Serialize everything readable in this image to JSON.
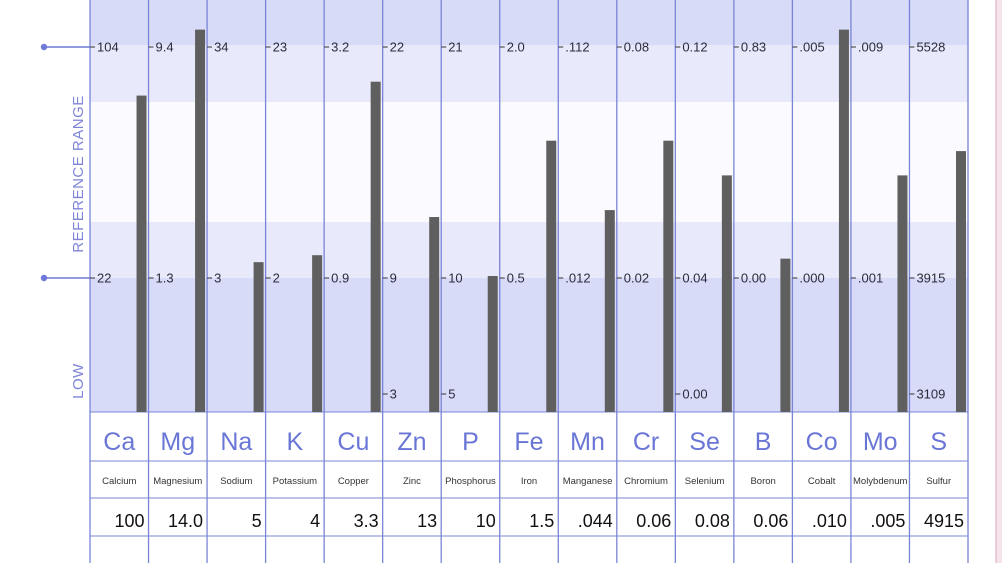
{
  "side_labels": {
    "reference_range": "REFERENCE  RANGE",
    "low": "LOW"
  },
  "colors": {
    "column_lines": "#7a84d6",
    "bar": "#5f5f5f",
    "band_dark": "#d7dbf8",
    "band_light": "#e8eafb",
    "band_white": "#fbfbff",
    "symbol": "#6a76d6",
    "marker": "#6f7ad8",
    "side_label": "#7f86d8"
  },
  "chart_data": {
    "type": "bar",
    "title": "",
    "bar_levels_note": "",
    "categories": [
      "Ca",
      "Mg",
      "Na",
      "K",
      "Cu",
      "Zn",
      "P",
      "Fe",
      "Mn",
      "Cr",
      "Se",
      "B",
      "Co",
      "Mo",
      "S"
    ],
    "names": [
      "Calcium",
      "Magnesium",
      "Sodium",
      "Potassium",
      "Copper",
      "Zinc",
      "Phosphorus",
      "Iron",
      "Manganese",
      "Chromium",
      "Selenium",
      "Boron",
      "Cobalt",
      "Molybdenum",
      "Sulfur"
    ],
    "values_label": [
      "100",
      "14.0",
      "5",
      "4",
      "3.3",
      "13",
      "10",
      "1.5",
      ".044",
      "0.06",
      "0.08",
      "0.06",
      ".010",
      ".005",
      "4915"
    ],
    "reference_high": [
      "104",
      "9.4",
      "34",
      "23",
      "3.2",
      "22",
      "21",
      "2.0",
      ".112",
      "0.08",
      "0.12",
      "0.83",
      ".005",
      ".009",
      "5528"
    ],
    "reference_low": [
      "22",
      "1.3",
      "3",
      "2",
      "0.9",
      "9",
      "10",
      "0.5",
      ".012",
      "0.02",
      "0.04",
      "0.00",
      ".000",
      ".001",
      "3915"
    ],
    "low_min": [
      "",
      "",
      "",
      "",
      "",
      "3",
      "5",
      "",
      "",
      "",
      "0.00",
      "",
      "",
      "",
      "3109"
    ],
    "bar_level": [
      0.86,
      1.05,
      0.38,
      0.4,
      0.9,
      0.51,
      0.34,
      0.73,
      0.53,
      0.73,
      0.63,
      0.39,
      1.05,
      0.63,
      0.7
    ]
  }
}
